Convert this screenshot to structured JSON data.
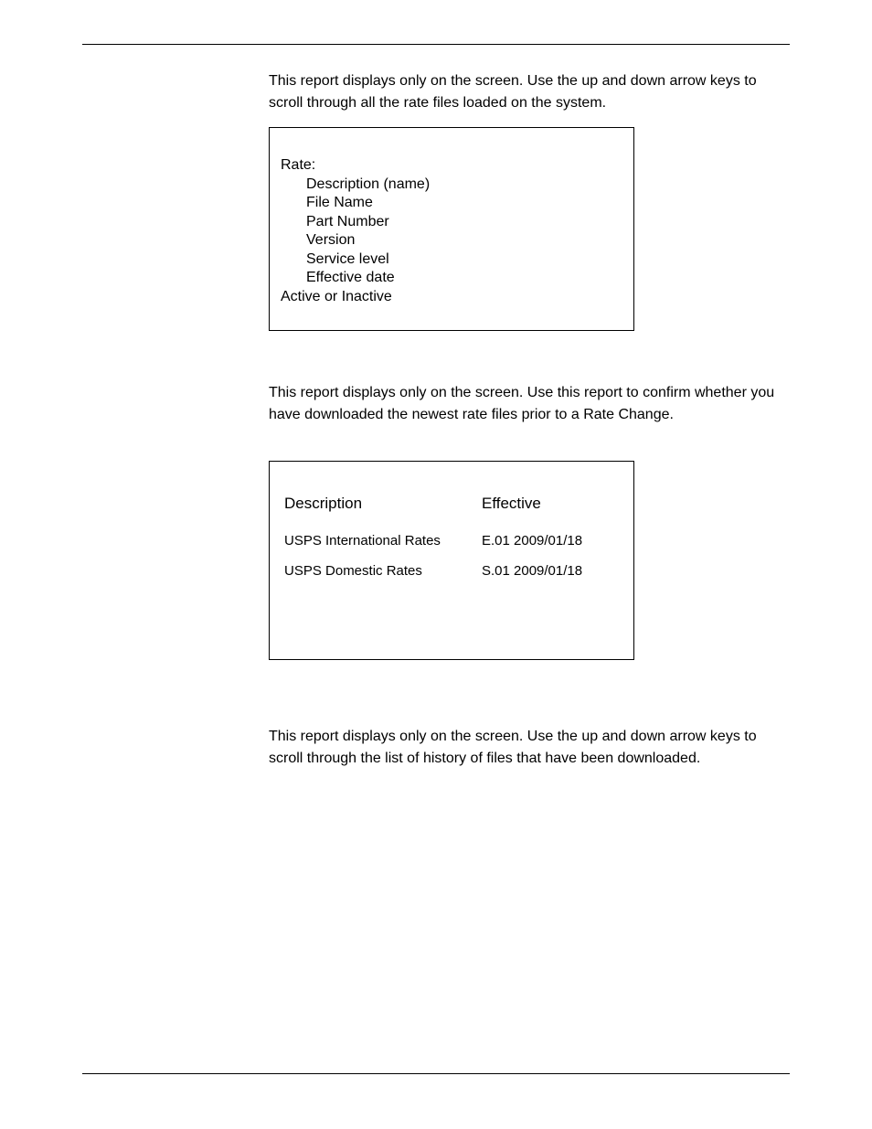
{
  "section1": {
    "paragraph": "This report displays only on the screen. Use the up and down arrow keys to scroll through all the rate files loaded on the system.",
    "box": {
      "title": "Rate:",
      "items": [
        "Description (name)",
        "File Name",
        "Part Number",
        "Version",
        "Service level",
        "Effective date"
      ],
      "status": "Active or Inactive"
    }
  },
  "section2": {
    "paragraph": "This report displays only on the screen. Use this report to confirm whether you have downloaded the newest rate files prior to a Rate Change.",
    "table": {
      "headers": {
        "description": "Description",
        "effective": "Effective"
      },
      "rows": [
        {
          "description": "USPS International Rates",
          "effective": "E.01 2009/01/18"
        },
        {
          "description": "USPS Domestic Rates",
          "effective": "S.01 2009/01/18"
        }
      ]
    }
  },
  "section3": {
    "paragraph": "This report displays only on the screen. Use the up and down arrow keys to scroll through  the list of history of files that have been downloaded."
  }
}
